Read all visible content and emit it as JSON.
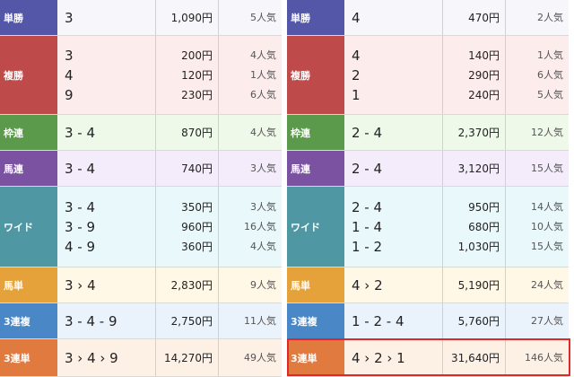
{
  "left": [
    {
      "bet": "単勝",
      "color": "#5457a8",
      "bg": "#f7f7fb",
      "entries": [
        {
          "comb": "3",
          "pay": "1,090円",
          "pop": "5人気"
        }
      ]
    },
    {
      "bet": "複勝",
      "color": "#bf4a4a",
      "bg": "#fdecec",
      "entries": [
        {
          "comb": "3",
          "pay": "200円",
          "pop": "4人気"
        },
        {
          "comb": "4",
          "pay": "120円",
          "pop": "1人気"
        },
        {
          "comb": "9",
          "pay": "230円",
          "pop": "6人気"
        }
      ]
    },
    {
      "bet": "枠連",
      "color": "#5b9a4b",
      "bg": "#eef9e9",
      "entries": [
        {
          "comb": "3 - 4",
          "pay": "870円",
          "pop": "4人気"
        }
      ]
    },
    {
      "bet": "馬連",
      "color": "#7b52a2",
      "bg": "#f4ecfb",
      "entries": [
        {
          "comb": "3 - 4",
          "pay": "740円",
          "pop": "3人気"
        }
      ]
    },
    {
      "bet": "ワイド",
      "color": "#4f97a3",
      "bg": "#e9f8fb",
      "entries": [
        {
          "comb": "3 - 4",
          "pay": "350円",
          "pop": "3人気"
        },
        {
          "comb": "3 - 9",
          "pay": "960円",
          "pop": "16人気"
        },
        {
          "comb": "4 - 9",
          "pay": "360円",
          "pop": "4人気"
        }
      ]
    },
    {
      "bet": "馬単",
      "color": "#e6a23a",
      "bg": "#fff8e6",
      "entries": [
        {
          "comb": "3 › 4",
          "pay": "2,830円",
          "pop": "9人気"
        }
      ]
    },
    {
      "bet": "3連複",
      "color": "#4a87c6",
      "bg": "#eaf3fc",
      "entries": [
        {
          "comb": "3 - 4 - 9",
          "pay": "2,750円",
          "pop": "11人気"
        }
      ]
    },
    {
      "bet": "3連単",
      "color": "#e07a3e",
      "bg": "#fdf1e6",
      "entries": [
        {
          "comb": "3 › 4 › 9",
          "pay": "14,270円",
          "pop": "49人気"
        }
      ]
    }
  ],
  "right": [
    {
      "bet": "単勝",
      "color": "#5457a8",
      "bg": "#f7f7fb",
      "entries": [
        {
          "comb": "4",
          "pay": "470円",
          "pop": "2人気"
        }
      ]
    },
    {
      "bet": "複勝",
      "color": "#bf4a4a",
      "bg": "#fdecec",
      "entries": [
        {
          "comb": "4",
          "pay": "140円",
          "pop": "1人気"
        },
        {
          "comb": "2",
          "pay": "290円",
          "pop": "6人気"
        },
        {
          "comb": "1",
          "pay": "240円",
          "pop": "5人気"
        }
      ]
    },
    {
      "bet": "枠連",
      "color": "#5b9a4b",
      "bg": "#eef9e9",
      "entries": [
        {
          "comb": "2 - 4",
          "pay": "2,370円",
          "pop": "12人気"
        }
      ]
    },
    {
      "bet": "馬連",
      "color": "#7b52a2",
      "bg": "#f4ecfb",
      "entries": [
        {
          "comb": "2 - 4",
          "pay": "3,120円",
          "pop": "15人気"
        }
      ]
    },
    {
      "bet": "ワイド",
      "color": "#4f97a3",
      "bg": "#e9f8fb",
      "entries": [
        {
          "comb": "2 - 4",
          "pay": "950円",
          "pop": "14人気"
        },
        {
          "comb": "1 - 4",
          "pay": "680円",
          "pop": "10人気"
        },
        {
          "comb": "1 - 2",
          "pay": "1,030円",
          "pop": "15人気"
        }
      ]
    },
    {
      "bet": "馬単",
      "color": "#e6a23a",
      "bg": "#fff8e6",
      "entries": [
        {
          "comb": "4 › 2",
          "pay": "5,190円",
          "pop": "24人気"
        }
      ]
    },
    {
      "bet": "3連複",
      "color": "#4a87c6",
      "bg": "#eaf3fc",
      "entries": [
        {
          "comb": "1 - 2 - 4",
          "pay": "5,760円",
          "pop": "27人気"
        }
      ]
    },
    {
      "bet": "3連単",
      "color": "#e07a3e",
      "bg": "#fdf1e6",
      "entries": [
        {
          "comb": "4 › 2 › 1",
          "pay": "31,640円",
          "pop": "146人気"
        }
      ]
    }
  ]
}
